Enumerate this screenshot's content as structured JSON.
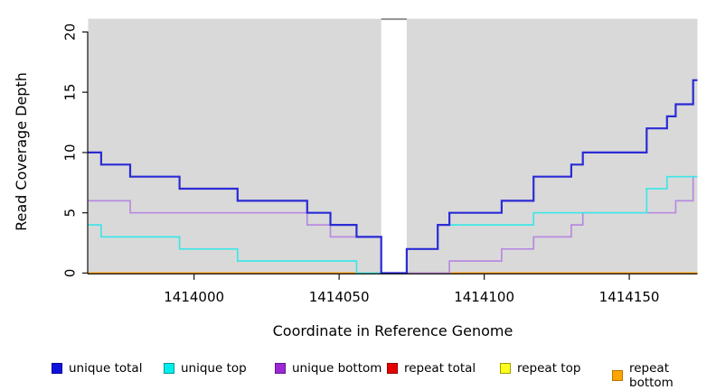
{
  "figure": {
    "background": "#ffffff",
    "plot_background": "#d9d9d9",
    "axis_color": "#111111",
    "text_color": "#000000",
    "gap_cap_color": "#8c8c8c"
  },
  "chart_data": {
    "type": "line",
    "style": "step",
    "title": "",
    "xlabel": "Coordinate in Reference Genome",
    "ylabel": "Read Coverage Depth",
    "xlim": [
      1413963.5,
      1414173.5
    ],
    "ylim": [
      0,
      21.1
    ],
    "x_ticks": [
      1414000,
      1414050,
      1414100,
      1414150
    ],
    "y_ticks": [
      0,
      5,
      10,
      15,
      20
    ],
    "grid": false,
    "legend_position": "bottom",
    "gap_region": {
      "x_start": 1414064.5,
      "x_end": 1414073.3
    },
    "series": [
      {
        "name": "unique total",
        "line_color": "#2b2bd5",
        "swatch_fill": "#1111dd",
        "swatch_border": "#000090",
        "line_width": 2.2,
        "z": 7,
        "steps": [
          [
            1413963.5,
            10
          ],
          [
            1413968,
            9
          ],
          [
            1413978,
            8
          ],
          [
            1413995,
            7
          ],
          [
            1414015,
            6
          ],
          [
            1414039,
            5
          ],
          [
            1414047,
            4
          ],
          [
            1414056,
            3
          ],
          [
            1414064.5,
            0
          ],
          [
            1414073.3,
            2
          ],
          [
            1414084,
            4
          ],
          [
            1414088,
            5
          ],
          [
            1414106,
            6
          ],
          [
            1414117,
            8
          ],
          [
            1414130,
            9
          ],
          [
            1414134,
            10
          ],
          [
            1414156,
            12
          ],
          [
            1414163,
            13
          ],
          [
            1414166,
            14
          ],
          [
            1414172,
            16
          ]
        ]
      },
      {
        "name": "unique top",
        "line_color": "#3fe6e8",
        "swatch_fill": "#00eeee",
        "swatch_border": "#009696",
        "line_width": 1.7,
        "z": 6,
        "steps": [
          [
            1413963.5,
            4
          ],
          [
            1413968,
            3
          ],
          [
            1413995,
            2
          ],
          [
            1414015,
            1
          ],
          [
            1414056,
            0
          ],
          [
            1414073.3,
            2
          ],
          [
            1414084,
            4
          ],
          [
            1414117,
            5
          ],
          [
            1414156,
            7
          ],
          [
            1414163,
            8
          ]
        ]
      },
      {
        "name": "unique bottom",
        "line_color": "#b78ae0",
        "swatch_fill": "#9d27d7",
        "swatch_border": "#5c1a8e",
        "line_width": 1.7,
        "z": 5,
        "steps": [
          [
            1413963.5,
            6
          ],
          [
            1413978,
            5
          ],
          [
            1414039,
            4
          ],
          [
            1414047,
            3
          ],
          [
            1414064.5,
            0
          ],
          [
            1414088,
            1
          ],
          [
            1414106,
            2
          ],
          [
            1414117,
            3
          ],
          [
            1414130,
            4
          ],
          [
            1414134,
            5
          ],
          [
            1414166,
            6
          ],
          [
            1414172,
            8
          ]
        ]
      },
      {
        "name": "repeat total",
        "line_color": "#dc1414",
        "swatch_fill": "#e60000",
        "swatch_border": "#900000",
        "line_width": 1.5,
        "z": 1,
        "steps": [
          [
            1413963.5,
            0
          ]
        ]
      },
      {
        "name": "repeat top",
        "line_color": "#ffff00",
        "swatch_fill": "#ffff1e",
        "swatch_border": "#a0a000",
        "line_width": 1.5,
        "z": 2,
        "steps": [
          [
            1413963.5,
            0
          ]
        ]
      },
      {
        "name": "repeat bottom",
        "line_color": "#ff9e0e",
        "swatch_fill": "#ffa500",
        "swatch_border": "#b97400",
        "line_width": 1.8,
        "z": 3,
        "steps": [
          [
            1413963.5,
            0
          ]
        ]
      }
    ]
  }
}
